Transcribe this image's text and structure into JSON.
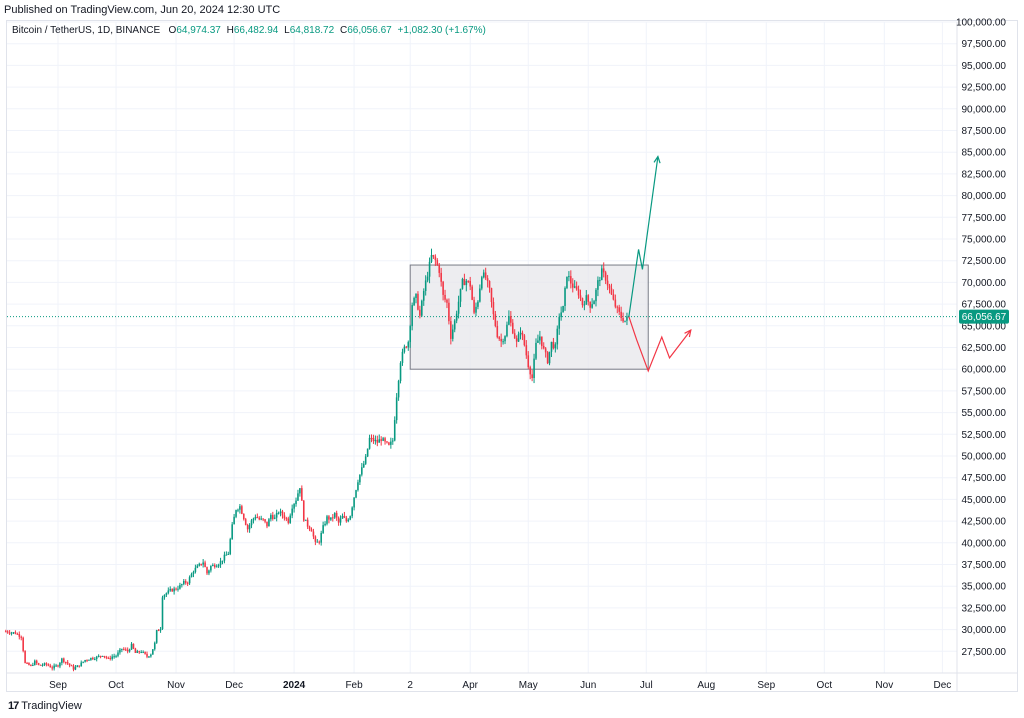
{
  "header": {
    "published": "Published on TradingView.com, Jun 20, 2024 12:30 UTC"
  },
  "legend": {
    "symbol": "Bitcoin / TetherUS, 1D, BINANCE",
    "o_label": "O",
    "o_value": "64,974.37",
    "h_label": "H",
    "h_value": "66,482.94",
    "l_label": "L",
    "l_value": "64,818.72",
    "c_label": "C",
    "c_value": "66,056.67",
    "change": "+1,082.30 (+1.67%)"
  },
  "footer": {
    "brand": "TradingView",
    "logo_text": "17"
  },
  "colors": {
    "up": "#089981",
    "down": "#f23645",
    "grid": "#f0f3fa",
    "box_fill": "#e6e6ea",
    "box_stroke": "#787b86",
    "price_line": "#089981"
  },
  "chart_data": {
    "type": "candlestick",
    "ylim": [
      25000,
      100000
    ],
    "y_ticks": [
      "100,000.00",
      "97,500.00",
      "95,000.00",
      "92,500.00",
      "90,000.00",
      "87,500.00",
      "85,000.00",
      "82,500.00",
      "80,000.00",
      "77,500.00",
      "75,000.00",
      "72,500.00",
      "70,000.00",
      "67,500.00",
      "65,000.00",
      "62,500.00",
      "60,000.00",
      "57,500.00",
      "55,000.00",
      "52,500.00",
      "50,000.00",
      "47,500.00",
      "45,000.00",
      "42,500.00",
      "40,000.00",
      "37,500.00",
      "35,000.00",
      "32,500.00",
      "30,000.00",
      "27,500.00"
    ],
    "x_ticks": [
      {
        "label": "Sep",
        "day": 0
      },
      {
        "label": "Oct",
        "day": 30
      },
      {
        "label": "Nov",
        "day": 61
      },
      {
        "label": "Dec",
        "day": 91
      },
      {
        "label": "2024",
        "day": 122,
        "bold": true
      },
      {
        "label": "Feb",
        "day": 153
      },
      {
        "label": "2",
        "day": 182
      },
      {
        "label": "Apr",
        "day": 213
      },
      {
        "label": "May",
        "day": 243
      },
      {
        "label": "Jun",
        "day": 274
      },
      {
        "label": "Jul",
        "day": 304
      },
      {
        "label": "Aug",
        "day": 335
      },
      {
        "label": "Sep",
        "day": 366
      },
      {
        "label": "Oct",
        "day": 396
      },
      {
        "label": "Nov",
        "day": 427
      },
      {
        "label": "Dec",
        "day": 457
      }
    ],
    "last_price": 66056.67,
    "last_price_label": "66,056.67",
    "price_path": [
      [
        -27,
        29800
      ],
      [
        -22,
        29600
      ],
      [
        -19,
        29200
      ],
      [
        -17,
        26100
      ],
      [
        -14,
        25800
      ],
      [
        -12,
        26300
      ],
      [
        -10,
        25900
      ],
      [
        -6,
        26000
      ],
      [
        -3,
        25600
      ],
      [
        0,
        25900
      ],
      [
        2,
        26600
      ],
      [
        5,
        26100
      ],
      [
        8,
        25500
      ],
      [
        11,
        25900
      ],
      [
        14,
        26500
      ],
      [
        17,
        26700
      ],
      [
        20,
        26800
      ],
      [
        23,
        27100
      ],
      [
        26,
        26600
      ],
      [
        28,
        26900
      ],
      [
        30,
        27000
      ],
      [
        33,
        27800
      ],
      [
        36,
        27500
      ],
      [
        38,
        28200
      ],
      [
        40,
        27300
      ],
      [
        43,
        27500
      ],
      [
        46,
        26900
      ],
      [
        48,
        27200
      ],
      [
        50,
        28400
      ],
      [
        51,
        29800
      ],
      [
        53,
        30200
      ],
      [
        54,
        33900
      ],
      [
        56,
        34200
      ],
      [
        58,
        34500
      ],
      [
        61,
        34700
      ],
      [
        63,
        35000
      ],
      [
        65,
        35400
      ],
      [
        67,
        35500
      ],
      [
        70,
        36800
      ],
      [
        72,
        37200
      ],
      [
        75,
        37800
      ],
      [
        77,
        36500
      ],
      [
        79,
        37300
      ],
      [
        82,
        37500
      ],
      [
        84,
        37800
      ],
      [
        86,
        38400
      ],
      [
        88,
        38800
      ],
      [
        90,
        41900
      ],
      [
        92,
        43900
      ],
      [
        94,
        44200
      ],
      [
        96,
        42900
      ],
      [
        98,
        41600
      ],
      [
        100,
        42500
      ],
      [
        102,
        43100
      ],
      [
        104,
        42700
      ],
      [
        106,
        42600
      ],
      [
        108,
        42000
      ],
      [
        110,
        43200
      ],
      [
        112,
        42800
      ],
      [
        114,
        43600
      ],
      [
        117,
        43000
      ],
      [
        119,
        42500
      ],
      [
        121,
        44200
      ],
      [
        123,
        45000
      ],
      [
        125,
        46500
      ],
      [
        127,
        42800
      ],
      [
        129,
        42000
      ],
      [
        131,
        41500
      ],
      [
        133,
        39900
      ],
      [
        135,
        40200
      ],
      [
        137,
        41800
      ],
      [
        139,
        42900
      ],
      [
        141,
        42700
      ],
      [
        143,
        43300
      ],
      [
        145,
        42300
      ],
      [
        147,
        43000
      ],
      [
        149,
        42500
      ],
      [
        151,
        43200
      ],
      [
        153,
        45300
      ],
      [
        155,
        47200
      ],
      [
        157,
        48500
      ],
      [
        159,
        49700
      ],
      [
        161,
        52000
      ],
      [
        163,
        51800
      ],
      [
        165,
        51600
      ],
      [
        167,
        52000
      ],
      [
        169,
        51500
      ],
      [
        171,
        51100
      ],
      [
        173,
        51800
      ],
      [
        175,
        57000
      ],
      [
        177,
        61000
      ],
      [
        179,
        62400
      ],
      [
        181,
        63200
      ],
      [
        183,
        67500
      ],
      [
        185,
        68300
      ],
      [
        187,
        66100
      ],
      [
        189,
        69000
      ],
      [
        191,
        71000
      ],
      [
        193,
        73000
      ],
      [
        195,
        72500
      ],
      [
        197,
        71400
      ],
      [
        199,
        68400
      ],
      [
        201,
        67600
      ],
      [
        203,
        63800
      ],
      [
        205,
        65500
      ],
      [
        207,
        67800
      ],
      [
        209,
        70000
      ],
      [
        211,
        70200
      ],
      [
        213,
        69700
      ],
      [
        215,
        66300
      ],
      [
        217,
        68000
      ],
      [
        219,
        71000
      ],
      [
        221,
        70500
      ],
      [
        223,
        69000
      ],
      [
        225,
        66200
      ],
      [
        227,
        64000
      ],
      [
        229,
        63200
      ],
      [
        231,
        64000
      ],
      [
        233,
        66000
      ],
      [
        235,
        64500
      ],
      [
        237,
        63000
      ],
      [
        239,
        64500
      ],
      [
        241,
        62800
      ],
      [
        243,
        60500
      ],
      [
        245,
        59000
      ],
      [
        247,
        62800
      ],
      [
        249,
        63800
      ],
      [
        251,
        62200
      ],
      [
        253,
        61000
      ],
      [
        255,
        63000
      ],
      [
        257,
        62500
      ],
      [
        259,
        66200
      ],
      [
        261,
        67000
      ],
      [
        263,
        71000
      ],
      [
        265,
        70000
      ],
      [
        267,
        69200
      ],
      [
        269,
        68800
      ],
      [
        271,
        67500
      ],
      [
        273,
        68200
      ],
      [
        275,
        67400
      ],
      [
        277,
        68000
      ],
      [
        279,
        70000
      ],
      [
        281,
        71200
      ],
      [
        283,
        70500
      ],
      [
        285,
        69200
      ],
      [
        287,
        67800
      ],
      [
        289,
        66800
      ],
      [
        291,
        66000
      ],
      [
        293,
        65600
      ],
      [
        295,
        66056
      ]
    ],
    "range_box": {
      "x0_day": 182,
      "x1_day": 305,
      "y_low": 60000,
      "y_high": 72000
    },
    "projection_up": [
      [
        295,
        66056
      ],
      [
        300,
        73800
      ],
      [
        302,
        71500
      ],
      [
        310,
        84500
      ]
    ],
    "projection_down": [
      [
        295,
        66056
      ],
      [
        299,
        63400
      ],
      [
        305,
        59800
      ],
      [
        312,
        63700
      ],
      [
        316,
        61300
      ],
      [
        327,
        64500
      ]
    ]
  }
}
